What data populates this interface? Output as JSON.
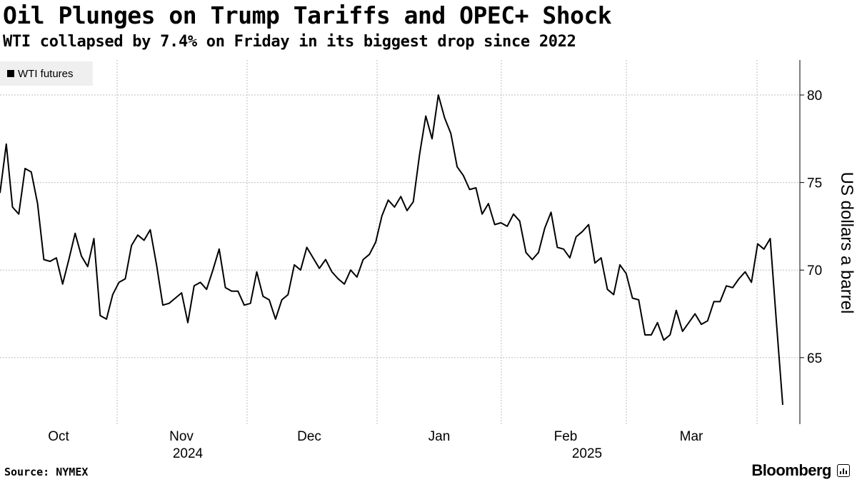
{
  "title": "Oil Plunges on Trump Tariffs and OPEC+ Shock",
  "subtitle": "WTI collapsed by 7.4% on Friday in its biggest drop since 2022",
  "source": "Source: NYMEX",
  "brand": "Bloomberg",
  "chart_data": {
    "type": "line",
    "ylabel": "US dollars a barrel",
    "ylim": [
      61.2,
      82
    ],
    "y_ticks": [
      "65",
      "70",
      "75",
      "80"
    ],
    "grid": true,
    "legend_position": "top-left",
    "x_labels": [
      "Oct",
      "Nov",
      "Dec",
      "Jan",
      "Feb",
      "Mar"
    ],
    "year_labels": [
      "2024",
      "2025"
    ],
    "series": [
      {
        "name": "WTI futures",
        "color": "#000000",
        "values": [
          74.4,
          77.2,
          73.6,
          73.2,
          75.8,
          75.6,
          73.8,
          70.6,
          70.5,
          70.7,
          69.2,
          70.6,
          72.1,
          70.8,
          70.2,
          71.8,
          67.4,
          67.2,
          68.6,
          69.3,
          69.5,
          71.4,
          72.0,
          71.7,
          72.3,
          70.3,
          68.0,
          68.1,
          68.4,
          68.7,
          67.0,
          69.1,
          69.3,
          68.9,
          70.0,
          71.2,
          69.0,
          68.8,
          68.8,
          68.0,
          68.1,
          69.9,
          68.5,
          68.3,
          67.2,
          68.3,
          68.6,
          70.3,
          70.0,
          71.3,
          70.7,
          70.1,
          70.6,
          69.9,
          69.5,
          69.2,
          70.0,
          69.6,
          70.6,
          70.9,
          71.6,
          73.1,
          74.0,
          73.6,
          74.2,
          73.4,
          73.9,
          76.6,
          78.8,
          77.5,
          80.0,
          78.7,
          77.8,
          75.9,
          75.4,
          74.6,
          74.7,
          73.2,
          73.8,
          72.6,
          72.7,
          72.5,
          73.2,
          72.8,
          71.0,
          70.6,
          71.0,
          72.4,
          73.3,
          71.3,
          71.2,
          70.7,
          71.9,
          72.2,
          72.6,
          70.4,
          70.7,
          68.9,
          68.6,
          70.3,
          69.8,
          68.4,
          68.3,
          66.3,
          66.3,
          67.0,
          66.0,
          66.3,
          67.7,
          66.5,
          67.0,
          67.5,
          66.9,
          67.1,
          68.2,
          68.2,
          69.1,
          69.0,
          69.5,
          69.9,
          69.3,
          71.5,
          71.2,
          71.8,
          67.0,
          62.3
        ]
      }
    ]
  }
}
